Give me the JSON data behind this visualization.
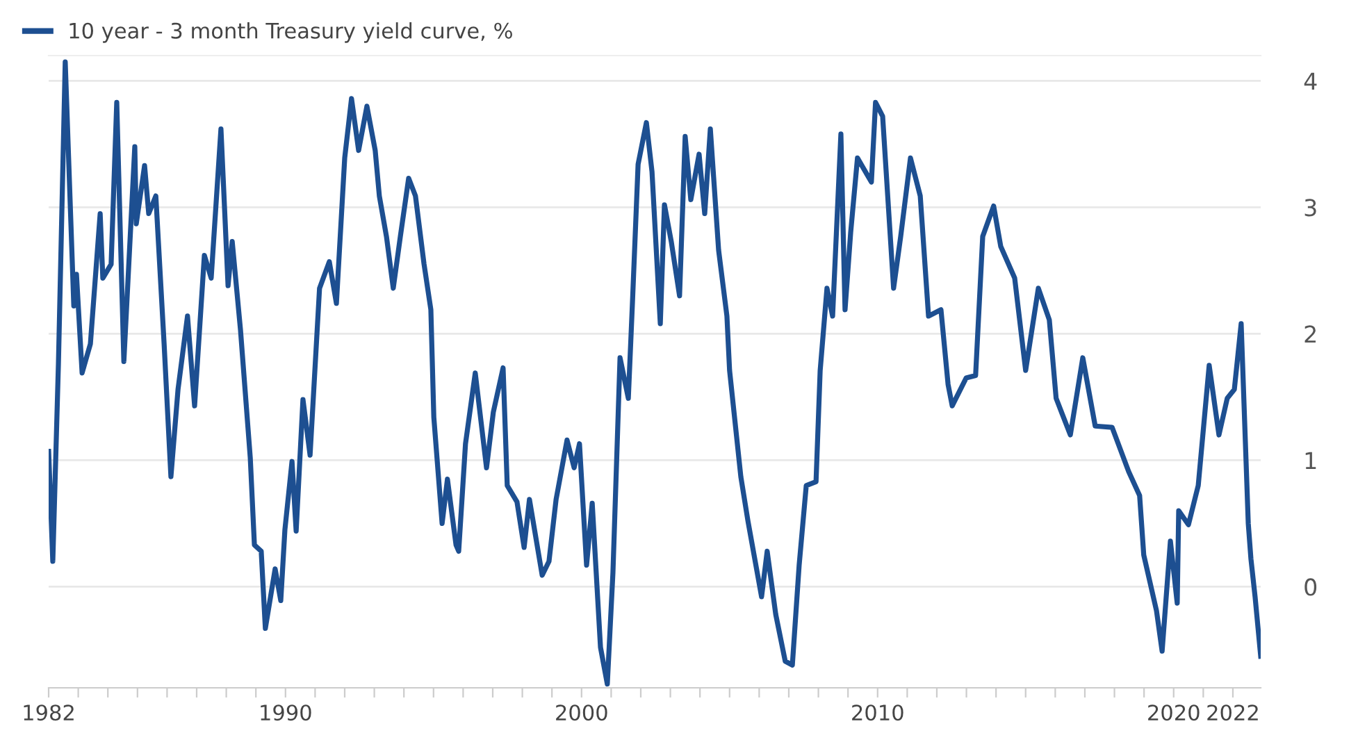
{
  "chart_data": {
    "type": "line",
    "series": [
      {
        "name": "10 year - 3 month Treasury yield curve, %",
        "color": "#1d4f91",
        "x": [
          1982.0,
          1982.14,
          1982.33,
          1982.56,
          1982.85,
          1982.94,
          1983.13,
          1983.41,
          1983.74,
          1983.83,
          1984.11,
          1984.3,
          1984.54,
          1984.91,
          1984.96,
          1985.24,
          1985.38,
          1985.62,
          1985.9,
          1986.13,
          1986.37,
          1986.69,
          1986.93,
          1987.26,
          1987.49,
          1987.82,
          1988.06,
          1988.2,
          1988.48,
          1988.81,
          1988.95,
          1989.18,
          1989.32,
          1989.65,
          1989.84,
          1989.98,
          1990.22,
          1990.36,
          1990.59,
          1990.83,
          1991.15,
          1991.48,
          1991.72,
          1992.0,
          1992.23,
          1992.47,
          1992.75,
          1993.03,
          1993.17,
          1993.41,
          1993.64,
          1993.88,
          1994.16,
          1994.39,
          1994.68,
          1994.91,
          1995.01,
          1995.29,
          1995.47,
          1995.76,
          1995.85,
          1996.08,
          1996.41,
          1996.79,
          1997.02,
          1997.35,
          1997.49,
          1997.82,
          1998.06,
          1998.24,
          1998.67,
          1998.9,
          1999.14,
          1999.51,
          1999.75,
          1999.93,
          2000.17,
          2000.36,
          2000.64,
          2000.87,
          2001.06,
          2001.3,
          2001.58,
          2001.72,
          2001.91,
          2002.19,
          2002.38,
          2002.66,
          2002.8,
          2003.03,
          2003.31,
          2003.5,
          2003.69,
          2003.97,
          2004.16,
          2004.35,
          2004.63,
          2004.91,
          2005.0,
          2005.38,
          2005.62,
          2006.08,
          2006.27,
          2006.56,
          2006.88,
          2007.12,
          2007.35,
          2007.59,
          2007.92,
          2008.06,
          2008.29,
          2008.48,
          2008.76,
          2008.9,
          2009.09,
          2009.32,
          2009.79,
          2009.93,
          2010.17,
          2010.54,
          2010.78,
          2011.11,
          2011.44,
          2011.72,
          2012.14,
          2012.38,
          2012.52,
          2012.99,
          2013.31,
          2013.55,
          2013.92,
          2014.16,
          2014.63,
          2015.0,
          2015.43,
          2015.8,
          2016.03,
          2016.51,
          2016.93,
          2017.35,
          2017.92,
          2018.48,
          2018.85,
          2018.99,
          2019.42,
          2019.61,
          2019.89,
          2020.12,
          2020.17,
          2020.5,
          2020.83,
          2021.2,
          2021.53,
          2021.81,
          2022.05,
          2022.28,
          2022.52,
          2022.61,
          2022.75,
          2022.94
        ],
        "values": [
          1.07,
          0.2,
          1.76,
          4.15,
          2.22,
          2.47,
          1.69,
          1.92,
          2.95,
          2.44,
          2.55,
          3.83,
          1.78,
          3.48,
          2.87,
          3.33,
          2.95,
          3.09,
          1.92,
          0.87,
          1.56,
          2.14,
          1.43,
          2.62,
          2.44,
          3.62,
          2.38,
          2.73,
          2.03,
          1.02,
          0.33,
          0.28,
          -0.33,
          0.14,
          -0.11,
          0.45,
          0.99,
          0.44,
          1.48,
          1.04,
          2.36,
          2.57,
          2.24,
          3.39,
          3.86,
          3.45,
          3.8,
          3.45,
          3.09,
          2.77,
          2.36,
          2.77,
          3.23,
          3.09,
          2.55,
          2.19,
          1.34,
          0.5,
          0.85,
          0.33,
          0.28,
          1.13,
          1.69,
          0.94,
          1.38,
          1.73,
          0.8,
          0.67,
          0.31,
          0.69,
          0.09,
          0.2,
          0.69,
          1.16,
          0.94,
          1.13,
          0.17,
          0.66,
          -0.48,
          -0.77,
          0.11,
          1.81,
          1.49,
          2.25,
          3.34,
          3.67,
          3.28,
          2.08,
          3.02,
          2.73,
          2.3,
          3.56,
          3.06,
          3.42,
          2.95,
          3.62,
          2.66,
          2.14,
          1.71,
          0.87,
          0.52,
          -0.08,
          0.28,
          -0.22,
          -0.59,
          -0.62,
          0.17,
          0.8,
          0.83,
          1.71,
          2.36,
          2.14,
          3.58,
          2.19,
          2.8,
          3.39,
          3.2,
          3.83,
          3.72,
          2.36,
          2.77,
          3.39,
          3.09,
          2.14,
          2.19,
          1.6,
          1.43,
          1.65,
          1.67,
          2.77,
          3.01,
          2.69,
          2.44,
          1.71,
          2.36,
          2.11,
          1.49,
          1.2,
          1.81,
          1.27,
          1.26,
          0.91,
          0.72,
          0.25,
          -0.19,
          -0.51,
          0.36,
          -0.13,
          0.6,
          0.49,
          0.8,
          1.75,
          1.2,
          1.49,
          1.56,
          2.08,
          0.5,
          0.22,
          -0.08,
          -0.55
        ]
      }
    ],
    "xlim": [
      1982,
      2022.94
    ],
    "xticks": [
      {
        "value": 1982,
        "label": "1982"
      },
      {
        "value": 1983,
        "label": null
      },
      {
        "value": 1984,
        "label": null
      },
      {
        "value": 1985,
        "label": null
      },
      {
        "value": 1986,
        "label": null
      },
      {
        "value": 1987,
        "label": null
      },
      {
        "value": 1988,
        "label": null
      },
      {
        "value": 1989,
        "label": null
      },
      {
        "value": 1990,
        "label": "1990"
      },
      {
        "value": 1991,
        "label": null
      },
      {
        "value": 1992,
        "label": null
      },
      {
        "value": 1993,
        "label": null
      },
      {
        "value": 1994,
        "label": null
      },
      {
        "value": 1995,
        "label": null
      },
      {
        "value": 1996,
        "label": null
      },
      {
        "value": 1997,
        "label": null
      },
      {
        "value": 1998,
        "label": null
      },
      {
        "value": 1999,
        "label": null
      },
      {
        "value": 2000,
        "label": "2000"
      },
      {
        "value": 2001,
        "label": null
      },
      {
        "value": 2002,
        "label": null
      },
      {
        "value": 2003,
        "label": null
      },
      {
        "value": 2004,
        "label": null
      },
      {
        "value": 2005,
        "label": null
      },
      {
        "value": 2006,
        "label": null
      },
      {
        "value": 2007,
        "label": null
      },
      {
        "value": 2008,
        "label": null
      },
      {
        "value": 2009,
        "label": null
      },
      {
        "value": 2010,
        "label": "2010"
      },
      {
        "value": 2011,
        "label": null
      },
      {
        "value": 2012,
        "label": null
      },
      {
        "value": 2013,
        "label": null
      },
      {
        "value": 2014,
        "label": null
      },
      {
        "value": 2015,
        "label": null
      },
      {
        "value": 2016,
        "label": null
      },
      {
        "value": 2017,
        "label": null
      },
      {
        "value": 2018,
        "label": null
      },
      {
        "value": 2019,
        "label": null
      },
      {
        "value": 2020,
        "label": "2020"
      },
      {
        "value": 2021,
        "label": null
      },
      {
        "value": 2022,
        "label": "2022"
      }
    ],
    "ylim": [
      -0.8,
      4.2
    ],
    "yticks": [
      0,
      1,
      2,
      3,
      4
    ],
    "grid": "y",
    "legend": "top left"
  }
}
